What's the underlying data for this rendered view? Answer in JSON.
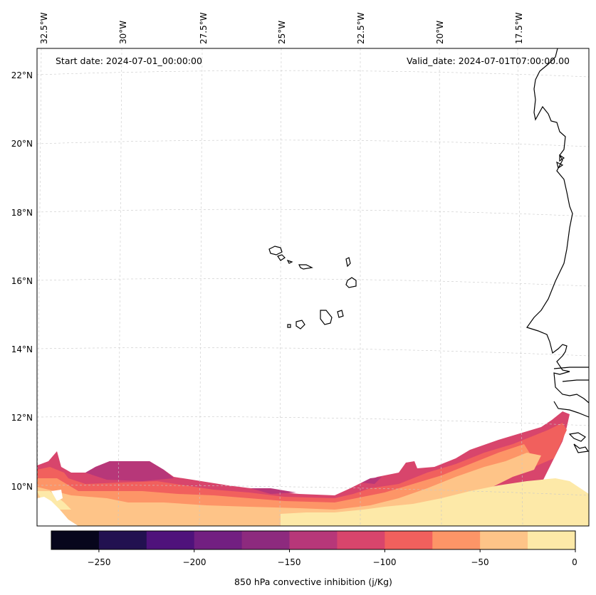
{
  "header": {
    "start_date": "Start date: 2024-07-01_00:00:00",
    "valid_date": "Valid_date: 2024-07-01T07:00:00.00"
  },
  "map": {
    "lon_labels": [
      "32.5°W",
      "30°W",
      "27.5°W",
      "25°W",
      "22.5°W",
      "20°W",
      "17.5°W"
    ],
    "lat_labels": [
      "22°N",
      "20°N",
      "18°N",
      "16°N",
      "14°N",
      "12°N",
      "10°N"
    ],
    "gridlines": "dashed"
  },
  "colorbar": {
    "label": "850 hPa convective inhibition (j/Kg)",
    "tick_labels": [
      "−250",
      "−200",
      "−150",
      "−100",
      "−50",
      "0"
    ],
    "levels": [
      -275,
      -250,
      -225,
      -200,
      -175,
      -150,
      -125,
      -100,
      -75,
      -50,
      -25,
      0
    ],
    "colors": [
      "#07061c",
      "#221150",
      "#4f127b",
      "#721f81",
      "#8d2a7e",
      "#b73779",
      "#d8456c",
      "#f1605d",
      "#fd9567",
      "#fec488",
      "#fde9a8"
    ]
  },
  "chart_data": {
    "type": "heatmap",
    "variable": "850 hPa convective inhibition (j/Kg)",
    "colorbar_range": [
      -275,
      0
    ]
  }
}
